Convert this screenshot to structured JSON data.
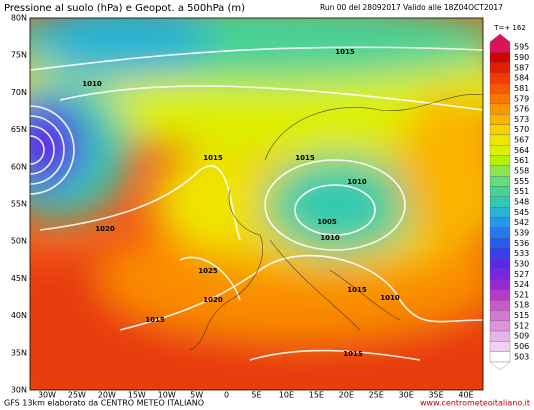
{
  "header": {
    "title": "Pressione al suolo (hPa) e Geopot. a 500hPa (m)",
    "run": "Run 00 del 28092017 Valido alle 18Z04OCT2017",
    "step": "T=+ 162"
  },
  "map": {
    "lat_labels": [
      "80N",
      "75N",
      "70N",
      "65N",
      "60N",
      "55N",
      "50N",
      "45N",
      "40N",
      "35N",
      "30N"
    ],
    "lon_labels": [
      "30W",
      "25W",
      "20W",
      "15W",
      "10W",
      "5W",
      "0",
      "5E",
      "10E",
      "15E",
      "20E",
      "25E",
      "30E",
      "35E",
      "40E"
    ],
    "isobar_labels": [
      1015,
      1010,
      1015,
      1015,
      1010,
      1005,
      1010,
      1020,
      1025,
      1020,
      1015,
      1015,
      1010,
      1015
    ]
  },
  "colorbar": {
    "values": [
      595,
      590,
      587,
      584,
      581,
      579,
      576,
      573,
      570,
      567,
      564,
      561,
      558,
      555,
      551,
      548,
      545,
      542,
      539,
      536,
      533,
      530,
      527,
      524,
      521,
      518,
      515,
      512,
      509,
      506,
      503
    ],
    "colors": [
      "#e0105a",
      "#d50000",
      "#e61c00",
      "#f03c00",
      "#f55a00",
      "#fa7800",
      "#fa9600",
      "#fab400",
      "#f8d200",
      "#f0e600",
      "#dcf000",
      "#b4f000",
      "#8ce650",
      "#64dc78",
      "#46d296",
      "#32c8b4",
      "#28b4d2",
      "#2896e6",
      "#2878f0",
      "#285af0",
      "#3c3cf0",
      "#5a28e6",
      "#7828dc",
      "#9628d2",
      "#b43cc8",
      "#c85ac8",
      "#d278d2",
      "#dc96dc",
      "#e6b4e6",
      "#f0d2f0",
      "#ffffff"
    ]
  },
  "footer": {
    "left": "GFS 13km elaborato da CENTRO METEO ITALIANO",
    "right": "www.centrometeoitaliano.it"
  }
}
